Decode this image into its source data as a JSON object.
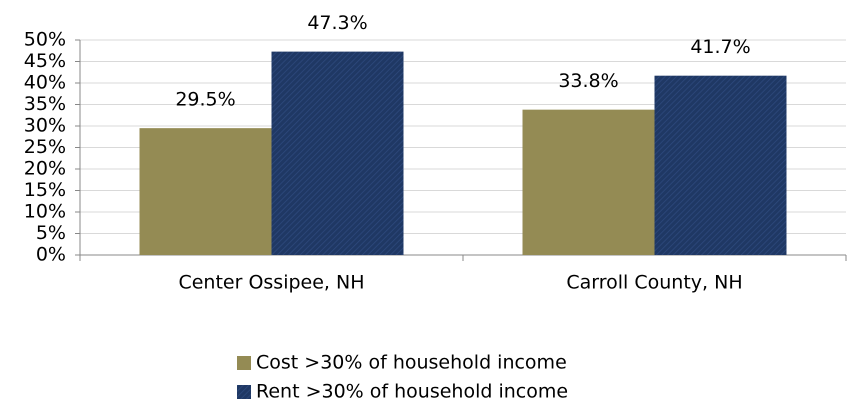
{
  "chart_data": {
    "type": "bar",
    "categories": [
      "Center Ossipee, NH",
      "Carroll County, NH"
    ],
    "series": [
      {
        "name": "Cost >30% of household income",
        "color": "#948b54",
        "values": [
          29.5,
          33.8
        ],
        "value_labels": [
          "29.5%",
          "33.8%"
        ]
      },
      {
        "name": "Rent >30% of household income",
        "color": "#1f3864",
        "values": [
          47.3,
          41.7
        ],
        "value_labels": [
          "47.3%",
          "41.7%"
        ]
      }
    ],
    "ylim": [
      0,
      50
    ],
    "yticks": [
      {
        "value": 0,
        "label": "0%"
      },
      {
        "value": 5,
        "label": "5%"
      },
      {
        "value": 10,
        "label": "10%"
      },
      {
        "value": 15,
        "label": "15%"
      },
      {
        "value": 20,
        "label": "20%"
      },
      {
        "value": 25,
        "label": "25%"
      },
      {
        "value": 30,
        "label": "30%"
      },
      {
        "value": 35,
        "label": "35%"
      },
      {
        "value": 40,
        "label": "40%"
      },
      {
        "value": 45,
        "label": "45%"
      },
      {
        "value": 50,
        "label": "50%"
      }
    ],
    "grid": true,
    "legend": "bottom"
  }
}
